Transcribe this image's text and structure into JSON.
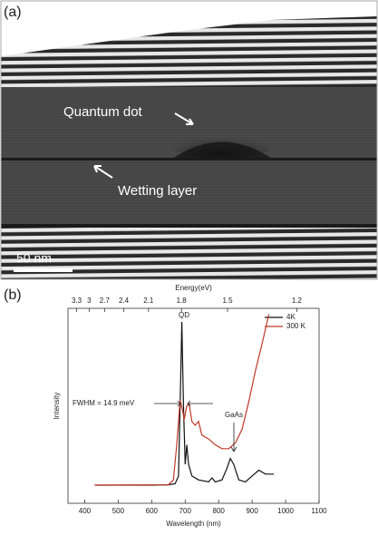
{
  "panel_a": {
    "label": "(a)",
    "annotations": [
      "Quantum dot",
      "Wetting layer"
    ],
    "scale_bar": "50 nm"
  },
  "panel_b": {
    "label": "(b)"
  },
  "chart_data": {
    "type": "line",
    "xlabel": "Wavelength (nm)",
    "ylabel": "Intensity",
    "x2label": "Energy(eV)",
    "xlim": [
      350,
      1100
    ],
    "xticks": [
      400,
      500,
      600,
      700,
      800,
      900,
      1000,
      1100
    ],
    "x2ticks": [
      3.3,
      3,
      2.7,
      2.4,
      2.1,
      1.8,
      1.5,
      1.2
    ],
    "ylim": [
      0,
      100
    ],
    "legend": "top-right",
    "annotations": [
      "QD",
      "FWHM = 14.9 meV",
      "GaAs"
    ],
    "series": [
      {
        "name": "4K",
        "color": "#111111",
        "x": [
          430,
          600,
          650,
          670,
          680,
          685,
          690,
          695,
          700,
          705,
          710,
          720,
          740,
          770,
          780,
          790,
          810,
          825,
          835,
          845,
          860,
          880,
          900,
          920,
          940,
          965
        ],
        "values": [
          9.3,
          9.3,
          9.5,
          10,
          14,
          50,
          93,
          50,
          20,
          30,
          20,
          14,
          12,
          11,
          13,
          11,
          12,
          18,
          23,
          20,
          12,
          11,
          14,
          17,
          15,
          15
        ]
      },
      {
        "name": "300 K",
        "color": "#c0392b",
        "x": [
          430,
          650,
          665,
          675,
          685,
          692,
          697,
          705,
          712,
          720,
          730,
          740,
          750,
          770,
          790,
          810,
          830,
          850,
          870,
          890,
          910,
          930,
          950
        ],
        "values": [
          9.3,
          9.5,
          12,
          30,
          53,
          48,
          43,
          50,
          51,
          42,
          40,
          42,
          35,
          33,
          30,
          28,
          28,
          31,
          38,
          52,
          68,
          82,
          97
        ]
      }
    ]
  }
}
